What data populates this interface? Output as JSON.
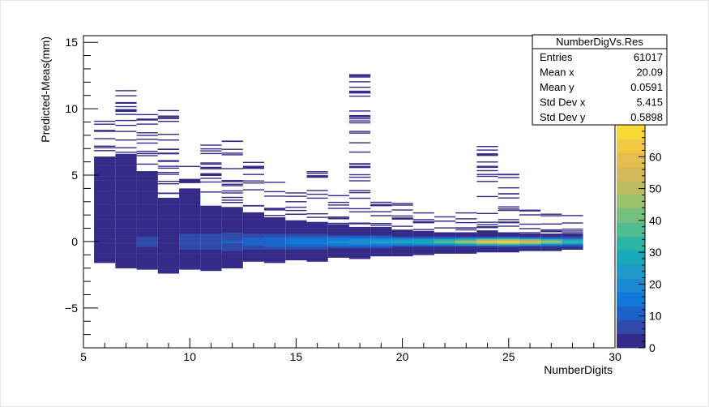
{
  "chart_data": {
    "type": "heatmap",
    "title": "",
    "xlabel": "NumberDigits",
    "ylabel": "Predicted-Meas(mm)",
    "xlim": [
      5,
      30
    ],
    "ylim": [
      -8,
      15.5
    ],
    "x_ticks": [
      "5",
      "10",
      "15",
      "20",
      "25",
      "30"
    ],
    "y_ticks": [
      "−5",
      "0",
      "5",
      "10",
      "15"
    ],
    "z_ticks": [
      "0",
      "10",
      "20",
      "30",
      "40",
      "50",
      "60"
    ],
    "zlim": [
      0,
      70
    ],
    "palette": [
      "#352a87",
      "#2f4aa8",
      "#1c63c9",
      "#0f78d8",
      "#1b8ad3",
      "#1f9ac8",
      "#17a8b9",
      "#2cb4a6",
      "#4fbc92",
      "#75c07f",
      "#98c06d",
      "#b9bd60",
      "#d3b958",
      "#e5be4f",
      "#f3c944",
      "#f9d934"
    ],
    "stats": {
      "title": "NumberDigVs.Res",
      "rows": [
        {
          "label": "Entries",
          "value": "61017"
        },
        {
          "label": "Mean x",
          "value": "20.09"
        },
        {
          "label": "Mean y",
          "value": "0.0591"
        },
        {
          "label": "Std Dev x",
          "value": "5.415"
        },
        {
          "label": "Std Dev y",
          "value": "0.5898"
        }
      ]
    },
    "columns": [
      {
        "x": 6,
        "ymin": -1.6,
        "ymax": 6.3,
        "sparse_top": 9.1,
        "peak": 3
      },
      {
        "x": 7,
        "ymin": -2.0,
        "ymax": 6.5,
        "sparse_top": 11.4,
        "peak": 4
      },
      {
        "x": 8,
        "ymin": -2.1,
        "ymax": 5.2,
        "sparse_top": 9.6,
        "peak": 5
      },
      {
        "x": 9,
        "ymin": -2.4,
        "ymax": 3.3,
        "sparse_top": 9.9,
        "peak": 4
      },
      {
        "x": 10,
        "ymin": -2.1,
        "ymax": 4.0,
        "sparse_top": 5.7,
        "peak": 6
      },
      {
        "x": 11,
        "ymin": -2.2,
        "ymax": 2.7,
        "sparse_top": 7.3,
        "peak": 8
      },
      {
        "x": 12,
        "ymin": -2.0,
        "ymax": 2.6,
        "sparse_top": 7.6,
        "peak": 9
      },
      {
        "x": 13,
        "ymin": -1.5,
        "ymax": 2.2,
        "sparse_top": 6.0,
        "peak": 11
      },
      {
        "x": 14,
        "ymin": -1.6,
        "ymax": 1.8,
        "sparse_top": 4.5,
        "peak": 13
      },
      {
        "x": 15,
        "ymin": -1.4,
        "ymax": 1.6,
        "sparse_top": 3.7,
        "peak": 15
      },
      {
        "x": 16,
        "ymin": -1.5,
        "ymax": 1.4,
        "sparse_top": 5.3,
        "peak": 17
      },
      {
        "x": 17,
        "ymin": -1.2,
        "ymax": 1.3,
        "sparse_top": 3.5,
        "peak": 19
      },
      {
        "x": 18,
        "ymin": -1.3,
        "ymax": 1.0,
        "sparse_top": 12.6,
        "peak": 21
      },
      {
        "x": 19,
        "ymin": -1.1,
        "ymax": 1.0,
        "sparse_top": 3.0,
        "peak": 24
      },
      {
        "x": 20,
        "ymin": -1.1,
        "ymax": 0.8,
        "sparse_top": 2.9,
        "peak": 27
      },
      {
        "x": 21,
        "ymin": -1.0,
        "ymax": 0.7,
        "sparse_top": 2.2,
        "peak": 31
      },
      {
        "x": 22,
        "ymin": -0.9,
        "ymax": 0.6,
        "sparse_top": 1.9,
        "peak": 38
      },
      {
        "x": 23,
        "ymin": -0.9,
        "ymax": 0.6,
        "sparse_top": 2.2,
        "peak": 50
      },
      {
        "x": 24,
        "ymin": -0.8,
        "ymax": 0.6,
        "sparse_top": 7.2,
        "peak": 62
      },
      {
        "x": 25,
        "ymin": -0.8,
        "ymax": 0.6,
        "sparse_top": 5.1,
        "peak": 67
      },
      {
        "x": 26,
        "ymin": -0.7,
        "ymax": 0.6,
        "sparse_top": 2.4,
        "peak": 58
      },
      {
        "x": 27,
        "ymin": -0.7,
        "ymax": 0.6,
        "sparse_top": 2.1,
        "peak": 46
      },
      {
        "x": 28,
        "ymin": -0.6,
        "ymax": 0.6,
        "sparse_top": 2.0,
        "peak": 34
      }
    ]
  }
}
